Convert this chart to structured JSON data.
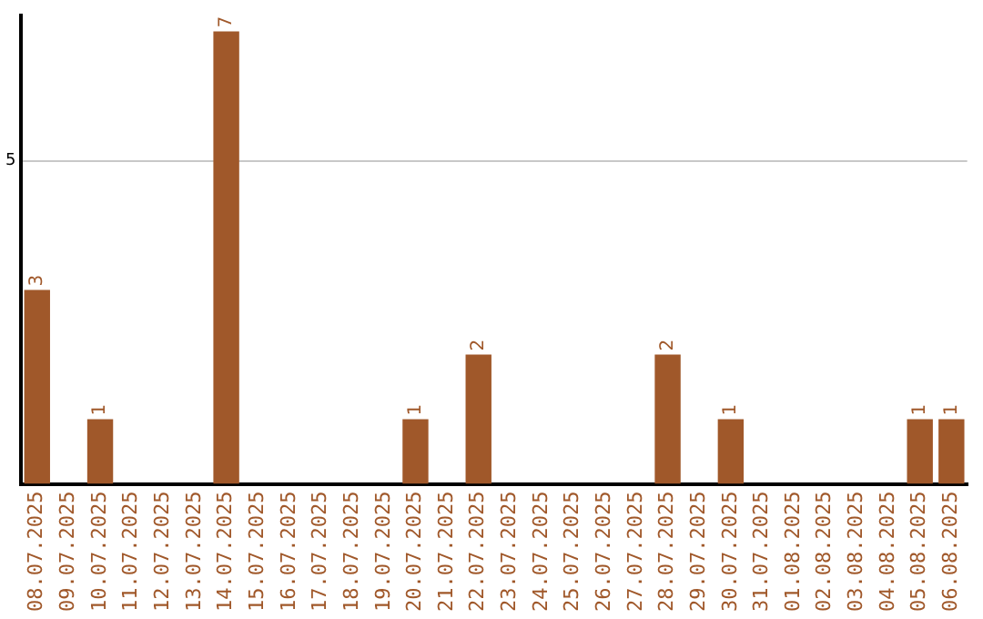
{
  "chart_data": {
    "type": "bar",
    "categories": [
      "08.07.2025",
      "09.07.2025",
      "10.07.2025",
      "11.07.2025",
      "12.07.2025",
      "13.07.2025",
      "14.07.2025",
      "15.07.2025",
      "16.07.2025",
      "17.07.2025",
      "18.07.2025",
      "19.07.2025",
      "20.07.2025",
      "21.07.2025",
      "22.07.2025",
      "23.07.2025",
      "24.07.2025",
      "25.07.2025",
      "26.07.2025",
      "27.07.2025",
      "28.07.2025",
      "29.07.2025",
      "30.07.2025",
      "31.07.2025",
      "01.08.2025",
      "02.08.2025",
      "03.08.2025",
      "04.08.2025",
      "05.08.2025",
      "06.08.2025"
    ],
    "values": [
      3,
      0,
      1,
      0,
      0,
      0,
      7,
      0,
      0,
      0,
      0,
      0,
      1,
      0,
      2,
      0,
      0,
      0,
      0,
      0,
      2,
      0,
      1,
      0,
      0,
      0,
      0,
      0,
      1,
      1
    ],
    "value_labels": [
      "3",
      null,
      "1",
      null,
      null,
      null,
      "7",
      null,
      null,
      null,
      null,
      null,
      "1",
      null,
      "2",
      null,
      null,
      null,
      null,
      null,
      "2",
      null,
      "1",
      null,
      null,
      null,
      null,
      null,
      "1",
      "1"
    ],
    "color": "#a0582a",
    "ylim": [
      0,
      7.25
    ],
    "yticks": [
      5
    ],
    "grid": "y",
    "legend": false
  }
}
